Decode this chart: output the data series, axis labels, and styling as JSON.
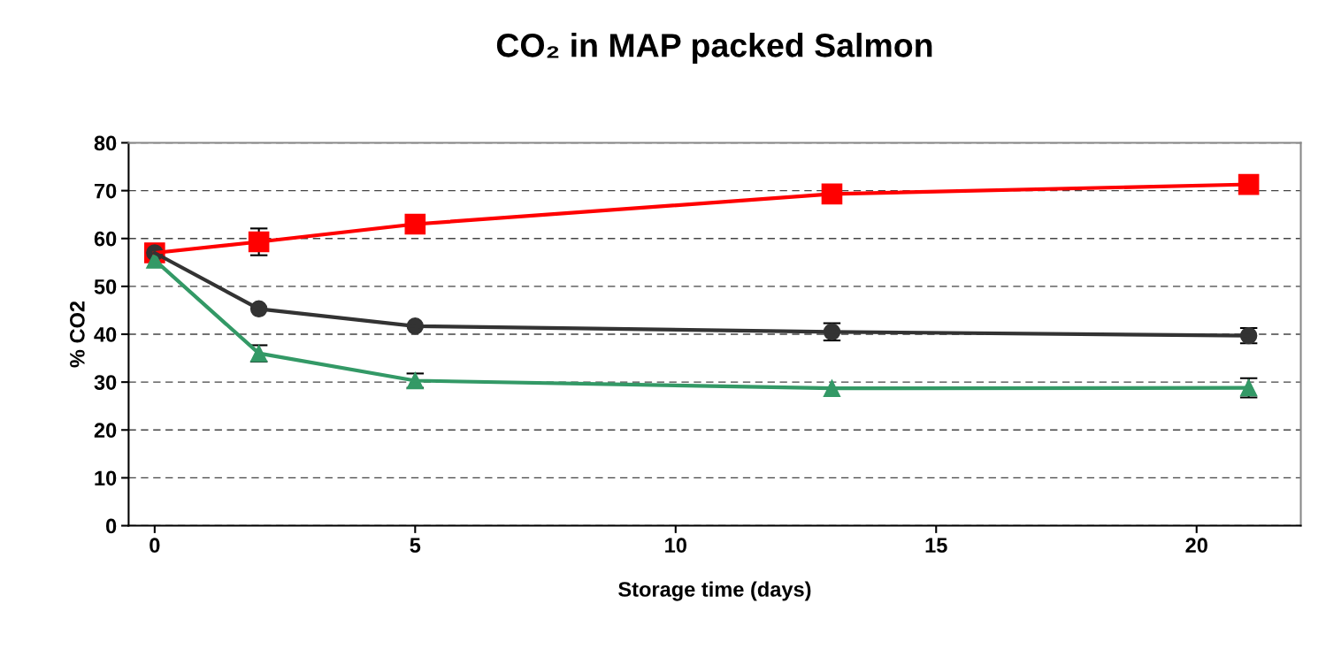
{
  "chart_data": {
    "type": "line",
    "title": "CO₂ in MAP packed Salmon",
    "xlabel": "Storage time (days)",
    "ylabel": "% CO2",
    "xlim": [
      -0.5,
      22
    ],
    "xticks": [
      0,
      5,
      10,
      15,
      20
    ],
    "ylim": [
      0,
      80
    ],
    "yticks": [
      0,
      10,
      20,
      30,
      40,
      50,
      60,
      70,
      80
    ],
    "grid": "y",
    "series": [
      {
        "color": "#ff0000",
        "marker": "square",
        "x": [
          0,
          2,
          5,
          13,
          21
        ],
        "values": [
          57,
          59.3,
          63,
          69.3,
          71.3
        ],
        "errors": [
          null,
          2.8,
          null,
          null,
          null
        ]
      },
      {
        "color": "#333333",
        "marker": "circle",
        "x": [
          0,
          2,
          5,
          13,
          21
        ],
        "values": [
          57,
          45.3,
          41.7,
          40.5,
          39.7
        ],
        "errors": [
          null,
          null,
          null,
          1.8,
          1.6
        ]
      },
      {
        "color": "#339966",
        "marker": "triangle",
        "x": [
          0,
          2,
          5,
          13,
          21
        ],
        "values": [
          55.5,
          36,
          30.3,
          28.7,
          28.8
        ],
        "errors": [
          null,
          1.7,
          1.5,
          null,
          2.0
        ]
      }
    ]
  }
}
